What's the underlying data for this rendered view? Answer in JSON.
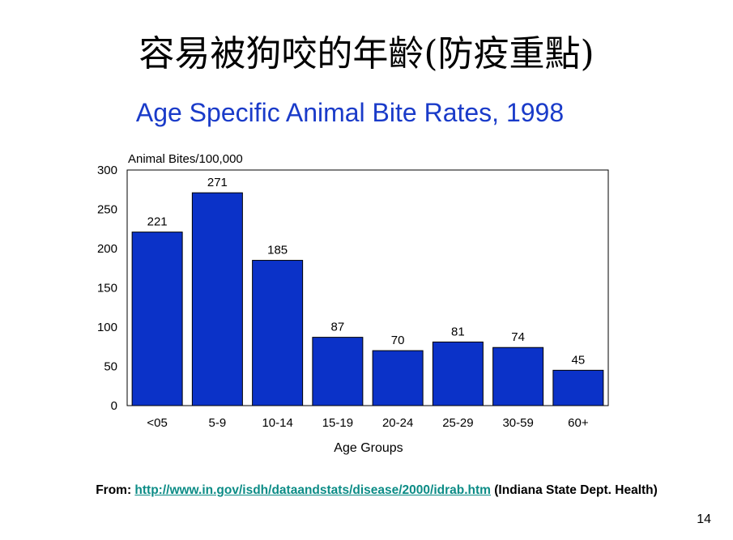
{
  "slide": {
    "title": "容易被狗咬的年齡(防疫重點)",
    "source_prefix": "From: ",
    "source_link": "http://www.in.gov/isdh/dataandstats/disease/2000/idrab.htm",
    "source_suffix": " (Indiana State Dept. Health)",
    "page_number": "14"
  },
  "colors": {
    "bar": "#0b32c8",
    "title": "#1a3bc9"
  },
  "chart_data": {
    "type": "bar",
    "title": "Age Specific Animal Bite Rates, 1998",
    "ylabel": "Animal Bites/100,000",
    "xlabel": "Age Groups",
    "categories": [
      "<05",
      "5-9",
      "10-14",
      "15-19",
      "20-24",
      "25-29",
      "30-59",
      "60+"
    ],
    "values": [
      221,
      271,
      185,
      87,
      70,
      81,
      74,
      45
    ],
    "data_labels": [
      "221",
      "271",
      "185",
      "87",
      "70",
      "81",
      "74",
      "45"
    ],
    "ylim": [
      0,
      300
    ],
    "yticks": [
      "0",
      "50",
      "100",
      "150",
      "200",
      "250",
      "300"
    ],
    "grid": false,
    "legend": "none"
  }
}
